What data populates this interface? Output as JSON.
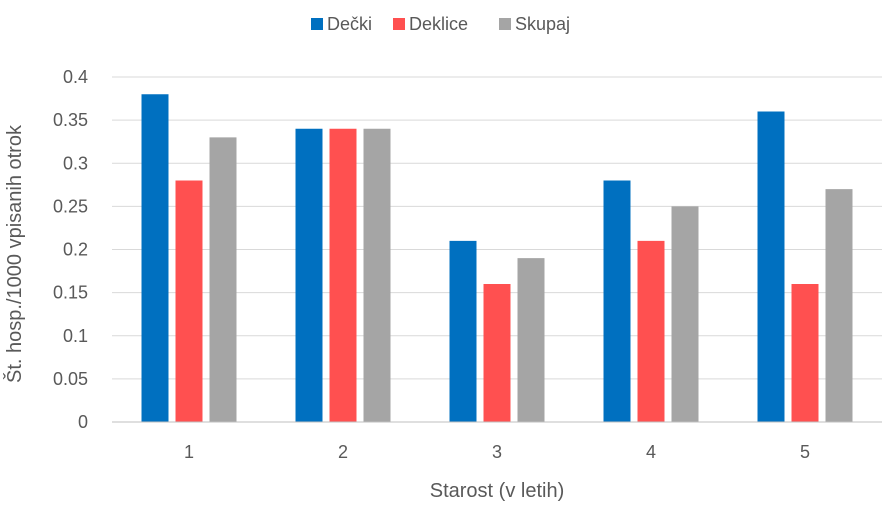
{
  "chart_data": {
    "type": "bar",
    "title": "",
    "xlabel": "Starost (v letih)",
    "ylabel": "Št. hosp./1000 vpisanih otrok",
    "categories": [
      "1",
      "2",
      "3",
      "4",
      "5"
    ],
    "series": [
      {
        "name": "Dečki",
        "color": "#0070C0",
        "values": [
          0.38,
          0.34,
          0.21,
          0.28,
          0.36
        ]
      },
      {
        "name": "Deklice",
        "color": "#FF5050",
        "values": [
          0.28,
          0.34,
          0.16,
          0.21,
          0.16
        ]
      },
      {
        "name": "Skupaj",
        "color": "#A5A5A5",
        "values": [
          0.33,
          0.34,
          0.19,
          0.25,
          0.27
        ]
      }
    ],
    "ylim": [
      0,
      0.4
    ],
    "yticks": [
      "0",
      "0.05",
      "0.1",
      "0.15",
      "0.2",
      "0.25",
      "0.3",
      "0.35",
      "0.4"
    ],
    "grid": true,
    "legend_position": "top-center"
  }
}
